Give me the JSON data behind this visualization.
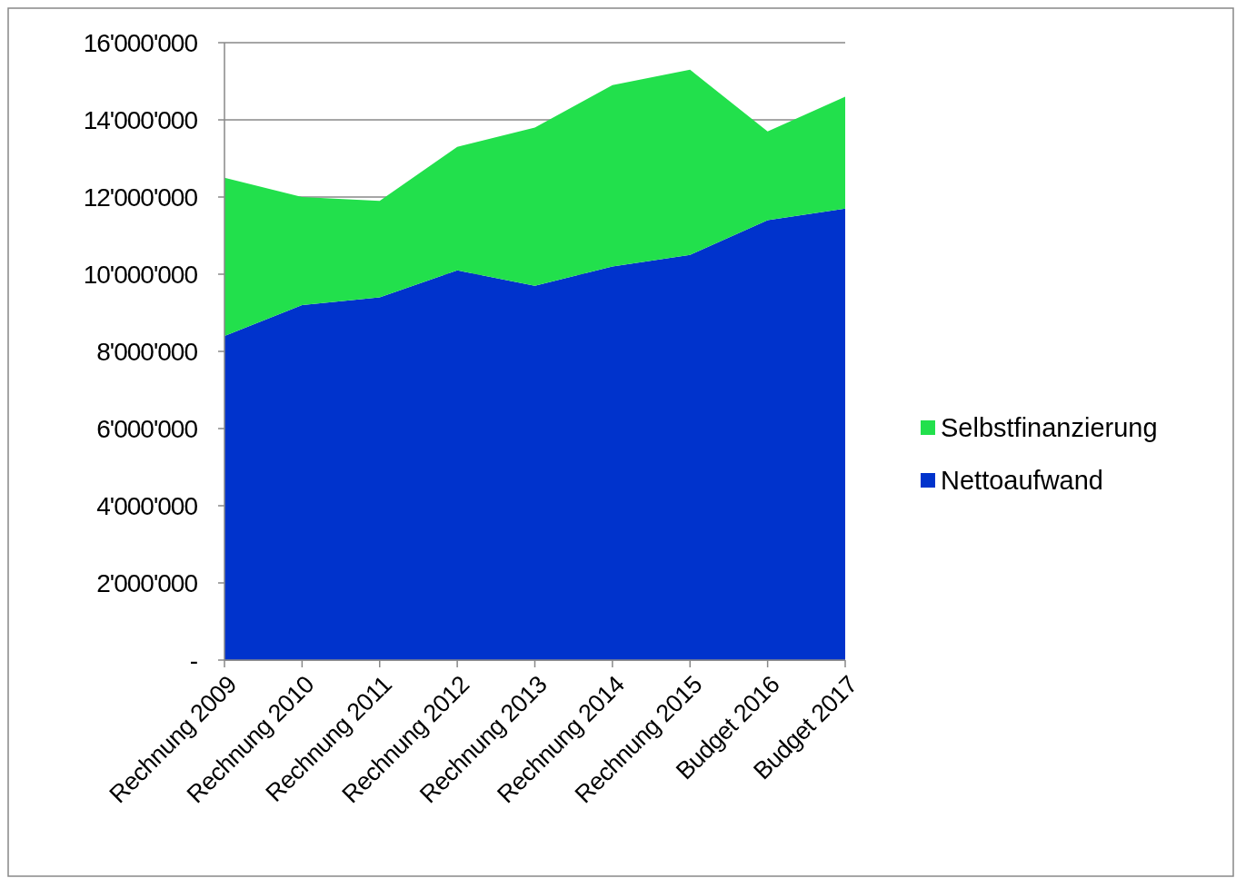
{
  "chart_data": {
    "type": "area",
    "stacked": true,
    "categories": [
      "Rechnung 2009",
      "Rechnung 2010",
      "Rechnung 2011",
      "Rechnung 2012",
      "Rechnung 2013",
      "Rechnung 2014",
      "Rechnung 2015",
      "Budget 2016",
      "Budget 2017"
    ],
    "series": [
      {
        "name": "Nettoaufwand",
        "color": "#0033cc",
        "values": [
          8400000,
          9200000,
          9400000,
          10100000,
          9700000,
          10200000,
          10500000,
          11400000,
          11700000
        ]
      },
      {
        "name": "Selbstfinanzierung",
        "color": "#22e04c",
        "values": [
          4100000,
          2800000,
          2500000,
          3200000,
          4100000,
          4700000,
          4800000,
          2300000,
          2900000
        ]
      }
    ],
    "ylim": [
      0,
      16000000
    ],
    "yticks": [
      {
        "value": 0,
        "label": "-"
      },
      {
        "value": 2000000,
        "label": "2'000'000"
      },
      {
        "value": 4000000,
        "label": "4'000'000"
      },
      {
        "value": 6000000,
        "label": "6'000'000"
      },
      {
        "value": 8000000,
        "label": "8'000'000"
      },
      {
        "value": 10000000,
        "label": "10'000'000"
      },
      {
        "value": 12000000,
        "label": "12'000'000"
      },
      {
        "value": 14000000,
        "label": "14'000'000"
      },
      {
        "value": 16000000,
        "label": "16'000'000"
      }
    ],
    "grid": "y",
    "legend": "right"
  }
}
